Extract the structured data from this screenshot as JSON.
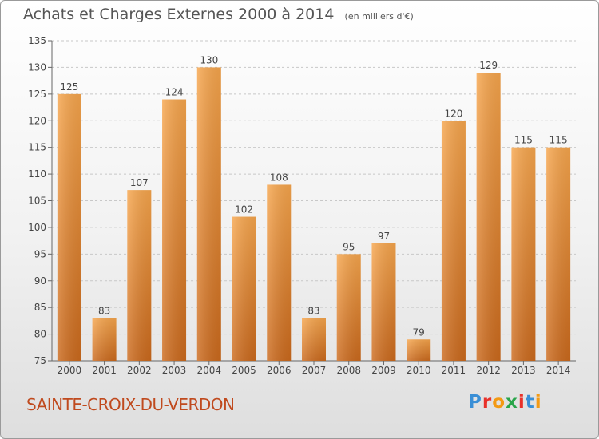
{
  "title": "Achats et Charges Externes 2000 à 2014",
  "subtitle": "(en milliers d'€)",
  "commune": "SAINTE-CROIX-DU-VERDON",
  "logo": {
    "letters": [
      "P",
      "r",
      "o",
      "x",
      "i",
      "t",
      "i"
    ],
    "colors": [
      "#3a8fd6",
      "#e8312a",
      "#f39a14",
      "#2aa54a",
      "#e8312a",
      "#3a8fd6",
      "#f39a14"
    ]
  },
  "colors": {
    "bar_light": "#f7a64d",
    "bar_dark": "#cc6a1d",
    "grid": "#c8c8c8",
    "text": "#444444"
  },
  "chart_data": {
    "type": "bar",
    "title": "Achats et Charges Externes 2000 à 2014",
    "subtitle": "(en milliers d'€)",
    "xlabel": "",
    "ylabel": "",
    "categories": [
      "2000",
      "2001",
      "2002",
      "2003",
      "2004",
      "2005",
      "2006",
      "2007",
      "2008",
      "2009",
      "2010",
      "2011",
      "2012",
      "2013",
      "2014"
    ],
    "values": [
      125,
      83,
      107,
      124,
      130,
      102,
      108,
      83,
      95,
      97,
      79,
      120,
      129,
      115,
      115
    ],
    "value_labels": [
      "125",
      "83",
      "107",
      "124",
      "130",
      "102",
      "108",
      "83",
      "95",
      "97",
      "79",
      "120",
      "129",
      "115",
      "115"
    ],
    "ylim": [
      75,
      135
    ],
    "yticks": [
      75,
      80,
      85,
      90,
      95,
      100,
      105,
      110,
      115,
      120,
      125,
      130,
      135
    ],
    "ytick_labels": [
      "75",
      "80",
      "85",
      "90",
      "95",
      "100",
      "105",
      "110",
      "115",
      "120",
      "125",
      "130",
      "135"
    ],
    "grid": true,
    "legend": "none"
  }
}
